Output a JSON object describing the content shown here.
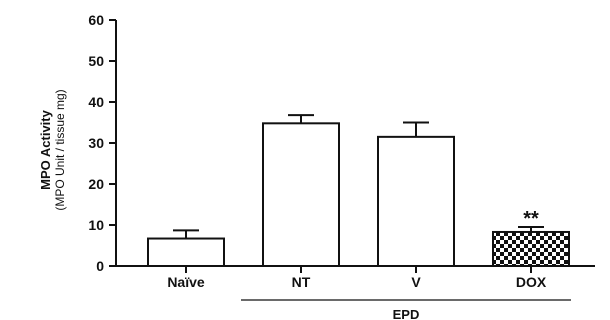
{
  "chart_data": {
    "type": "bar",
    "title": "",
    "ylabel": "MPO Activity",
    "ylabel_sub": "(MPO Unit / tissue mg)",
    "xlabel": "",
    "ylim": [
      0,
      60
    ],
    "yticks": [
      0,
      10,
      20,
      30,
      40,
      50,
      60
    ],
    "categories": [
      "Naïve",
      "NT",
      "V",
      "DOX"
    ],
    "values": [
      6.7,
      34.8,
      31.5,
      8.3
    ],
    "errors": [
      2.0,
      2.0,
      3.5,
      1.2
    ],
    "fills": [
      "white",
      "white",
      "white",
      "checkerboard"
    ],
    "annotations": [
      {
        "category": "DOX",
        "text": "**"
      }
    ],
    "group_bracket": {
      "label": "EPD",
      "categories": [
        "NT",
        "V",
        "DOX"
      ]
    },
    "grid": false,
    "colors": {
      "bar_edge": "#111111",
      "bar_fill": "#ffffff",
      "pattern": "#111111"
    }
  }
}
